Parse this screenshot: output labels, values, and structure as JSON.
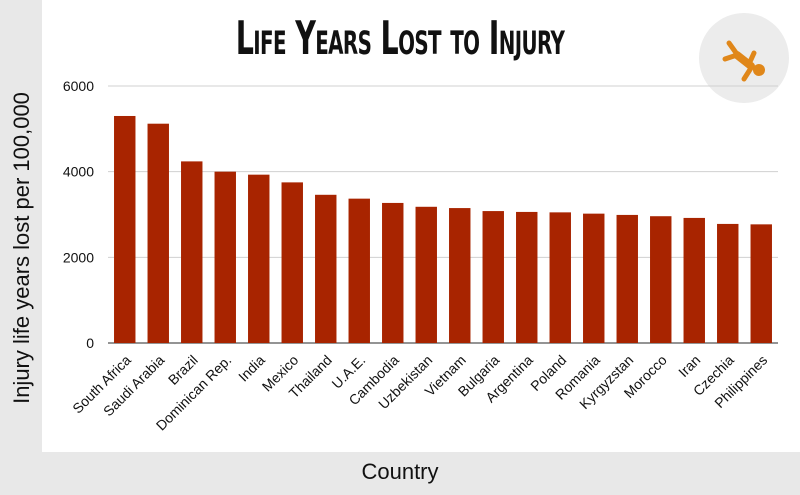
{
  "title": "Life Years Lost to Injury",
  "icon": "falling-person-icon",
  "colors": {
    "bar": "#a82400",
    "grid": "#d0d0d0",
    "icon": "#e0871a",
    "background": "#e8e8e8"
  },
  "chart_data": {
    "type": "bar",
    "title": "Life Years Lost to Injury",
    "xlabel": "Country",
    "ylabel": "Injury life years lost per 100,000",
    "ylim": [
      0,
      6000
    ],
    "yticks": [
      0,
      2000,
      4000,
      6000
    ],
    "grid": true,
    "categories": [
      "South Africa",
      "Saudi Arabia",
      "Brazil",
      "Dominican Rep.",
      "India",
      "Mexico",
      "Thailand",
      "U.A.E.",
      "Cambodia",
      "Uzbekistan",
      "Vietnam",
      "Bulgaria",
      "Argentina",
      "Poland",
      "Romania",
      "Kyrgyzstan",
      "Morocco",
      "Iran",
      "Czechia",
      "Philippines"
    ],
    "values": [
      5300,
      5120,
      4240,
      4000,
      3930,
      3750,
      3460,
      3370,
      3270,
      3180,
      3150,
      3080,
      3060,
      3050,
      3020,
      2990,
      2960,
      2920,
      2780,
      2770
    ]
  }
}
